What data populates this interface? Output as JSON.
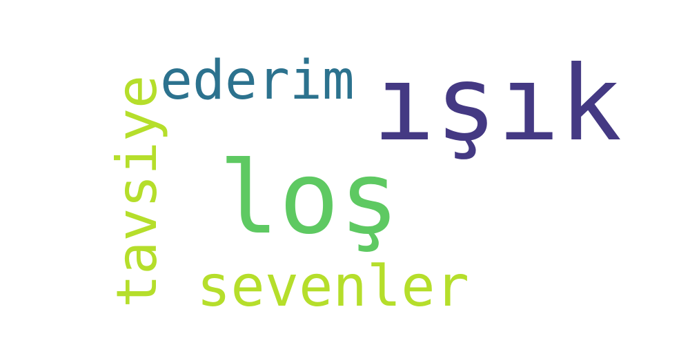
{
  "words": {
    "isik": {
      "text": "ışık",
      "color": "#443983"
    },
    "los": {
      "text": "loş",
      "color": "#5ec962"
    },
    "ederim": {
      "text": "ederim",
      "color": "#2c728e"
    },
    "sevenler": {
      "text": "sevenler",
      "color": "#b5de2b"
    },
    "tavsiye": {
      "text": "tavsiye",
      "color": "#b5de2b"
    }
  }
}
